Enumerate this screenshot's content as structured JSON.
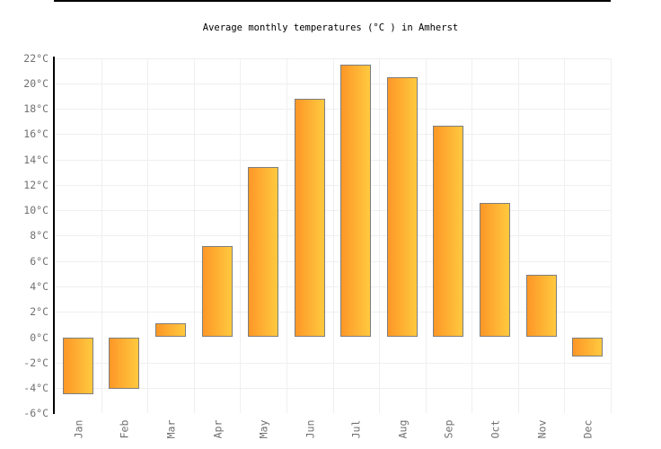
{
  "title": "Average monthly temperatures (°C ) in Amherst",
  "chart_data": {
    "type": "bar",
    "title": "Average monthly temperatures (°C ) in Amherst",
    "categories": [
      "Jan",
      "Feb",
      "Mar",
      "Apr",
      "May",
      "Jun",
      "Jul",
      "Aug",
      "Sep",
      "Oct",
      "Nov",
      "Dec"
    ],
    "values": [
      -4.5,
      -4.1,
      1.1,
      7.2,
      13.4,
      18.8,
      21.5,
      20.5,
      16.7,
      10.6,
      4.9,
      -1.5
    ],
    "unit": "°C",
    "ylim": [
      -6,
      22
    ],
    "ytick_step": 2,
    "ytick_values": [
      22,
      20,
      18,
      16,
      14,
      12,
      10,
      8,
      6,
      4,
      2,
      0,
      -2,
      -4,
      -6
    ],
    "ytick_suffix": "°C",
    "xlabel": "",
    "ylabel": "",
    "grid": true,
    "legend": "none",
    "colors": {
      "bar_gradient_left": "#fd9727",
      "bar_gradient_right": "#ffc93f",
      "bar_border": "#7e7e7e",
      "gridline": "#efefef",
      "axis": "#000000",
      "tick_label": "#707070",
      "title": "#000000",
      "background": "#ffffff"
    }
  }
}
